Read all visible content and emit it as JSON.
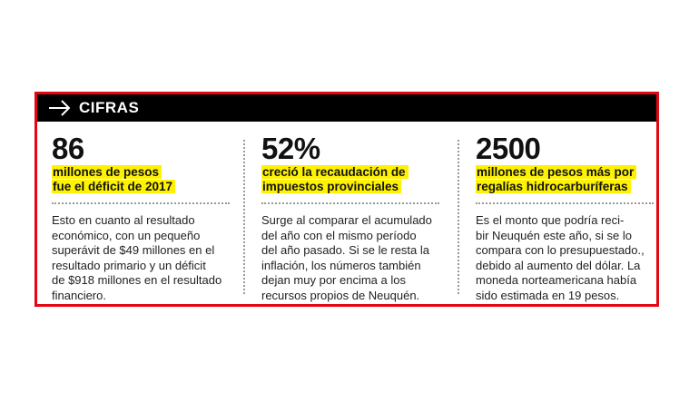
{
  "header": {
    "title": "CIFRAS"
  },
  "columns": [
    {
      "number": "86",
      "subtitle_lines": [
        "millones de pesos",
        "fue el déficit de 2017"
      ],
      "body_lines": [
        "Esto en cuanto al resultado",
        "económico, con un pequeño",
        "superávit de $49 millones en el",
        "resultado primario y un déficit",
        "de $918 millones en el resultado",
        "financiero."
      ]
    },
    {
      "number": "52%",
      "subtitle_lines": [
        "creció la recaudación de",
        "impuestos provinciales"
      ],
      "body_lines": [
        "Surge al comparar el acumulado",
        "del año con el mismo período",
        "del año pasado. Si se le resta la",
        "inflación, los números también",
        "dejan muy por encima a los",
        "recursos propios de Neuquén."
      ]
    },
    {
      "number": "2500",
      "subtitle_lines": [
        "millones de pesos más por",
        "regalías hidrocarburíferas"
      ],
      "body_lines": [
        "Es el monto que podría reci-",
        "bir Neuquén este año, si se lo",
        "compara con lo presupuestado.,",
        "debido al aumento del dólar. La",
        "moneda norteamericana había",
        "sido estimada en 19 pesos."
      ]
    }
  ],
  "colors": {
    "border": "#e30613",
    "header_bg": "#000000",
    "highlight": "#fff200"
  },
  "icons": {
    "header_icon": "arrow-right-icon"
  }
}
